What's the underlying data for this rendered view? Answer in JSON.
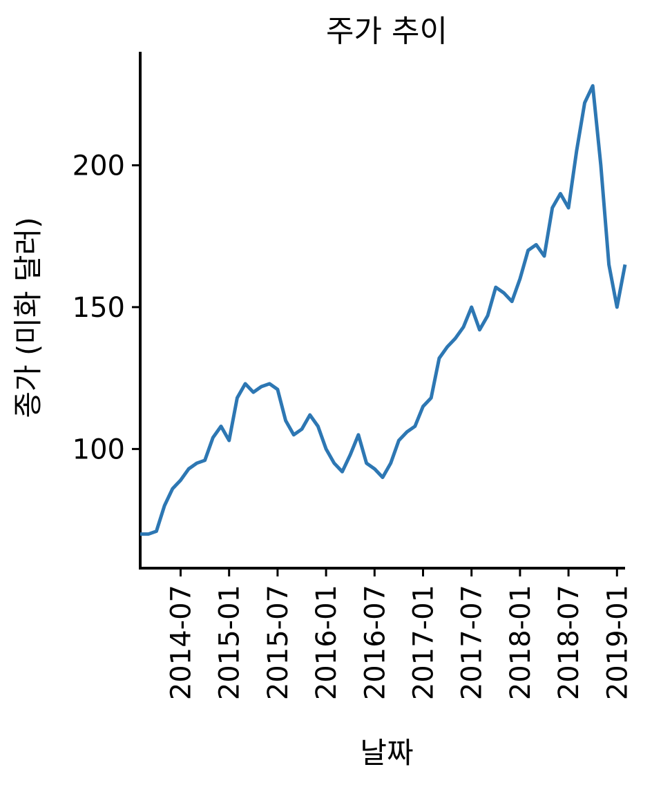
{
  "chart_data": {
    "type": "line",
    "title": "주가 추이",
    "xlabel": "날짜",
    "ylabel": "종가 (미화 달러)",
    "x": [
      "2014-02",
      "2014-03",
      "2014-04",
      "2014-05",
      "2014-06",
      "2014-07",
      "2014-08",
      "2014-09",
      "2014-10",
      "2014-11",
      "2014-12",
      "2015-01",
      "2015-02",
      "2015-03",
      "2015-04",
      "2015-05",
      "2015-06",
      "2015-07",
      "2015-08",
      "2015-09",
      "2015-10",
      "2015-11",
      "2015-12",
      "2016-01",
      "2016-02",
      "2016-03",
      "2016-04",
      "2016-05",
      "2016-06",
      "2016-07",
      "2016-08",
      "2016-09",
      "2016-10",
      "2016-11",
      "2016-12",
      "2017-01",
      "2017-02",
      "2017-03",
      "2017-04",
      "2017-05",
      "2017-06",
      "2017-07",
      "2017-08",
      "2017-09",
      "2017-10",
      "2017-11",
      "2017-12",
      "2018-01",
      "2018-02",
      "2018-03",
      "2018-04",
      "2018-05",
      "2018-06",
      "2018-07",
      "2018-08",
      "2018-09",
      "2018-10",
      "2018-11",
      "2018-12",
      "2019-01",
      "2019-02"
    ],
    "series": [
      {
        "name": "종가",
        "color": "#2d77b3",
        "values": [
          70,
          70,
          71,
          80,
          86,
          89,
          93,
          95,
          96,
          104,
          108,
          103,
          118,
          123,
          120,
          122,
          123,
          121,
          110,
          105,
          107,
          112,
          108,
          100,
          95,
          92,
          98,
          105,
          95,
          93,
          90,
          95,
          103,
          106,
          108,
          115,
          118,
          132,
          136,
          139,
          143,
          150,
          142,
          147,
          157,
          155,
          152,
          160,
          170,
          172,
          168,
          185,
          190,
          185,
          205,
          222,
          228,
          200,
          165,
          150,
          165
        ]
      }
    ],
    "xlim": [
      "2014-02",
      "2019-02"
    ],
    "ylim": [
      58,
      240
    ],
    "xticks": [
      "2014-07",
      "2015-01",
      "2015-07",
      "2016-01",
      "2016-07",
      "2017-01",
      "2017-07",
      "2018-01",
      "2018-07",
      "2019-01"
    ],
    "yticks": [
      100,
      150,
      200
    ],
    "grid": false
  }
}
